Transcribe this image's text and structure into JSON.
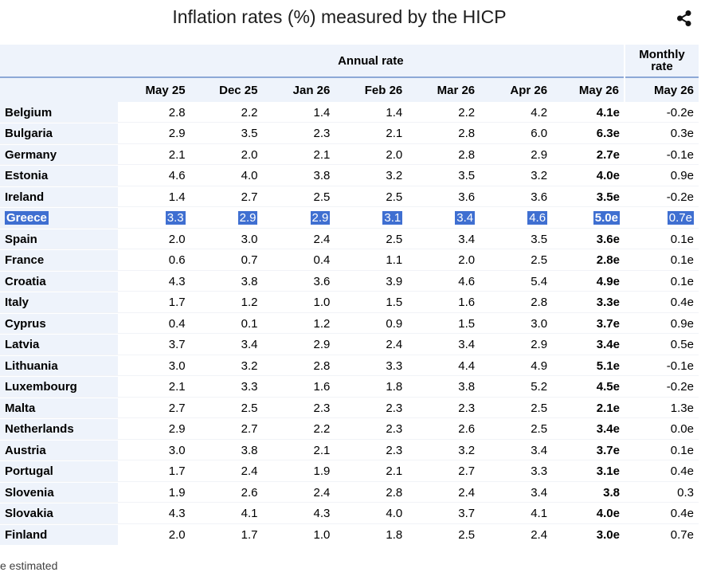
{
  "title": "Inflation rates (%) measured by the HICP",
  "header": {
    "annual_label": "Annual rate",
    "monthly_label": "Monthly rate",
    "annual_months": [
      "May 25",
      "Dec 25",
      "Jan 26",
      "Feb 26",
      "Mar 26",
      "Apr 26",
      "May 26"
    ],
    "monthly_month": "May 26"
  },
  "highlighted_row": "Greece",
  "highlight_color": "#3f6fd1",
  "header_bg_color": "#eef3fb",
  "rows": [
    {
      "country": "Belgium",
      "values": [
        "2.8",
        "2.2",
        "1.4",
        "1.4",
        "2.2",
        "4.2",
        "4.1e"
      ],
      "monthly": "-0.2e"
    },
    {
      "country": "Bulgaria",
      "values": [
        "2.9",
        "3.5",
        "2.3",
        "2.1",
        "2.8",
        "6.0",
        "6.3e"
      ],
      "monthly": "0.3e"
    },
    {
      "country": "Germany",
      "values": [
        "2.1",
        "2.0",
        "2.1",
        "2.0",
        "2.8",
        "2.9",
        "2.7e"
      ],
      "monthly": "-0.1e"
    },
    {
      "country": "Estonia",
      "values": [
        "4.6",
        "4.0",
        "3.8",
        "3.2",
        "3.5",
        "3.2",
        "4.0e"
      ],
      "monthly": "0.9e"
    },
    {
      "country": "Ireland",
      "values": [
        "1.4",
        "2.7",
        "2.5",
        "2.5",
        "3.6",
        "3.6",
        "3.5e"
      ],
      "monthly": "-0.2e"
    },
    {
      "country": "Greece",
      "values": [
        "3.3",
        "2.9",
        "2.9",
        "3.1",
        "3.4",
        "4.6",
        "5.0e"
      ],
      "monthly": "0.7e"
    },
    {
      "country": "Spain",
      "values": [
        "2.0",
        "3.0",
        "2.4",
        "2.5",
        "3.4",
        "3.5",
        "3.6e"
      ],
      "monthly": "0.1e"
    },
    {
      "country": "France",
      "values": [
        "0.6",
        "0.7",
        "0.4",
        "1.1",
        "2.0",
        "2.5",
        "2.8e"
      ],
      "monthly": "0.1e"
    },
    {
      "country": "Croatia",
      "values": [
        "4.3",
        "3.8",
        "3.6",
        "3.9",
        "4.6",
        "5.4",
        "4.9e"
      ],
      "monthly": "0.1e"
    },
    {
      "country": "Italy",
      "values": [
        "1.7",
        "1.2",
        "1.0",
        "1.5",
        "1.6",
        "2.8",
        "3.3e"
      ],
      "monthly": "0.4e"
    },
    {
      "country": "Cyprus",
      "values": [
        "0.4",
        "0.1",
        "1.2",
        "0.9",
        "1.5",
        "3.0",
        "3.7e"
      ],
      "monthly": "0.9e"
    },
    {
      "country": "Latvia",
      "values": [
        "3.7",
        "3.4",
        "2.9",
        "2.4",
        "3.4",
        "2.9",
        "3.4e"
      ],
      "monthly": "0.5e"
    },
    {
      "country": "Lithuania",
      "values": [
        "3.0",
        "3.2",
        "2.8",
        "3.3",
        "4.4",
        "4.9",
        "5.1e"
      ],
      "monthly": "-0.1e"
    },
    {
      "country": "Luxembourg",
      "values": [
        "2.1",
        "3.3",
        "1.6",
        "1.8",
        "3.8",
        "5.2",
        "4.5e"
      ],
      "monthly": "-0.2e"
    },
    {
      "country": "Malta",
      "values": [
        "2.7",
        "2.5",
        "2.3",
        "2.3",
        "2.3",
        "2.5",
        "2.1e"
      ],
      "monthly": "1.3e"
    },
    {
      "country": "Netherlands",
      "values": [
        "2.9",
        "2.7",
        "2.2",
        "2.3",
        "2.6",
        "2.5",
        "3.4e"
      ],
      "monthly": "0.0e"
    },
    {
      "country": "Austria",
      "values": [
        "3.0",
        "3.8",
        "2.1",
        "2.3",
        "3.2",
        "3.4",
        "3.7e"
      ],
      "monthly": "0.1e"
    },
    {
      "country": "Portugal",
      "values": [
        "1.7",
        "2.4",
        "1.9",
        "2.1",
        "2.7",
        "3.3",
        "3.1e"
      ],
      "monthly": "0.4e"
    },
    {
      "country": "Slovenia",
      "values": [
        "1.9",
        "2.6",
        "2.4",
        "2.8",
        "2.4",
        "3.4",
        "3.8"
      ],
      "monthly": "0.3"
    },
    {
      "country": "Slovakia",
      "values": [
        "4.3",
        "4.1",
        "4.3",
        "4.0",
        "3.7",
        "4.1",
        "4.0e"
      ],
      "monthly": "0.4e"
    },
    {
      "country": "Finland",
      "values": [
        "2.0",
        "1.7",
        "1.0",
        "1.8",
        "2.5",
        "2.4",
        "3.0e"
      ],
      "monthly": "0.7e"
    }
  ],
  "footnote": "e estimated",
  "icons": {
    "share": "share-icon"
  }
}
